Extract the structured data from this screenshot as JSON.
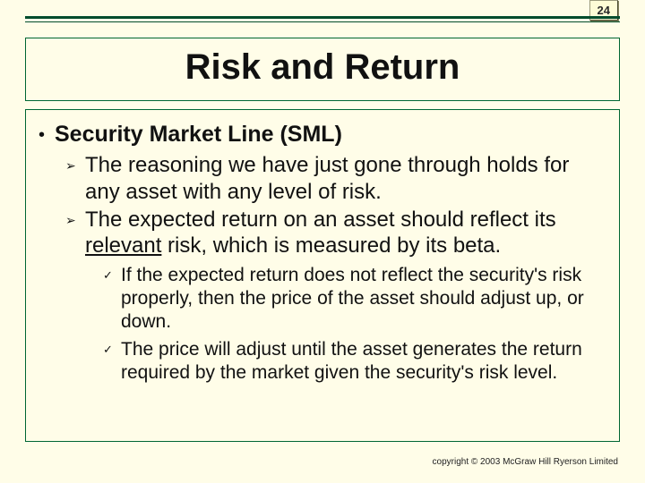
{
  "page_number": "24",
  "title": "Risk and Return",
  "heading": "Security Market Line (SML)",
  "sub1": "The reasoning we have just gone through holds for any asset with any level of risk.",
  "sub2_a": "The expected return on an asset should reflect its ",
  "sub2_u": "relevant",
  "sub2_b": " risk, which is measured by its beta.",
  "check1": "If the expected return does not reflect the security's risk properly, then the price of the asset should adjust up, or down.",
  "check2": "The price will adjust until the asset generates the return required by the market given the security's risk level.",
  "copyright": "copyright © 2003 McGraw Hill Ryerson Limited",
  "colors": {
    "background": "#fffde8",
    "rule": "#004c2c",
    "border": "#006633",
    "text": "#111111"
  }
}
